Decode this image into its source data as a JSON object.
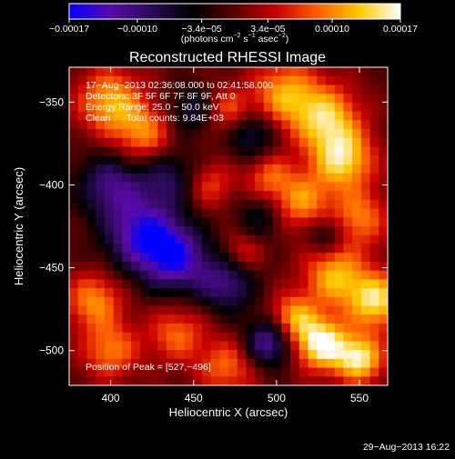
{
  "chart_data": {
    "type": "heatmap",
    "title": "Reconstructed RHESSI Image",
    "xlabel": "Heliocentric X (arcsec)",
    "ylabel": "Heliocentric Y (arcsec)",
    "xlim": [
      375,
      567
    ],
    "ylim": [
      -521,
      -329
    ],
    "xticks": [
      400,
      450,
      500,
      550
    ],
    "xtick_labels": [
      "400",
      "450",
      "500",
      "550"
    ],
    "yticks": [
      -350,
      -400,
      -450,
      -500
    ],
    "ytick_labels": [
      "−350",
      "−400",
      "−450",
      "−500"
    ],
    "colorbar": {
      "range": [
        -0.00017,
        0.00017
      ],
      "ticks": [
        -0.00017,
        -0.0001,
        -3.4e-05,
        3.4e-05,
        0.0001,
        0.00017
      ],
      "tick_labels": [
        "−0.00017",
        "−0.00010",
        "−3.4e−05",
        "3.4e−05",
        "0.00010",
        "0.00017"
      ],
      "unit_main": "(photons cm",
      "unit_sup1": "−2",
      "unit_mid": " s",
      "unit_sup2": "−1",
      "unit_mid2": " asec",
      "unit_sup3": "−2",
      "unit_end": ")",
      "colors": [
        "#0000ff",
        "#5a0aa8",
        "#2a0a55",
        "#000000",
        "#5a0000",
        "#c80000",
        "#ff6000",
        "#ffc800",
        "#ffffff"
      ]
    },
    "annotations": [
      "17−Aug−2013 02:36:08.000 to 02:41:58.000",
      "Detectors: 3F 5F 6F 7F 8F 9F, Att 0",
      "Energy Range: 25.0 − 50.0 keV",
      "Clean      Total counts: 9.84E+03"
    ],
    "peak_label": "Position of Peak = [527,−496]",
    "peak": [
      527,
      -496
    ],
    "grid": false,
    "blobs": [
      {
        "x": 400,
        "y": -350,
        "v": 0.7,
        "s": 14
      },
      {
        "x": 420,
        "y": -370,
        "v": 0.55,
        "s": 12
      },
      {
        "x": 470,
        "y": -355,
        "v": 0.45,
        "s": 10
      },
      {
        "x": 505,
        "y": -345,
        "v": 0.65,
        "s": 14
      },
      {
        "x": 530,
        "y": -360,
        "v": 0.75,
        "s": 14
      },
      {
        "x": 540,
        "y": -385,
        "v": 0.8,
        "s": 13
      },
      {
        "x": 515,
        "y": -410,
        "v": 0.6,
        "s": 12
      },
      {
        "x": 550,
        "y": -420,
        "v": 0.55,
        "s": 12
      },
      {
        "x": 495,
        "y": -395,
        "v": 0.45,
        "s": 10
      },
      {
        "x": 460,
        "y": -400,
        "v": 0.4,
        "s": 10
      },
      {
        "x": 390,
        "y": -470,
        "v": 0.6,
        "s": 12
      },
      {
        "x": 400,
        "y": -500,
        "v": 0.55,
        "s": 12
      },
      {
        "x": 440,
        "y": -490,
        "v": 0.5,
        "s": 12
      },
      {
        "x": 470,
        "y": -510,
        "v": 0.5,
        "s": 12
      },
      {
        "x": 535,
        "y": -455,
        "v": 0.7,
        "s": 13
      },
      {
        "x": 560,
        "y": -470,
        "v": 0.85,
        "s": 12
      },
      {
        "x": 527,
        "y": -496,
        "v": 1.0,
        "s": 11
      },
      {
        "x": 550,
        "y": -505,
        "v": 0.9,
        "s": 10
      },
      {
        "x": 510,
        "y": -480,
        "v": 0.65,
        "s": 10
      },
      {
        "x": 480,
        "y": -440,
        "v": 0.35,
        "s": 9
      },
      {
        "x": 420,
        "y": -430,
        "v": -0.85,
        "s": 16
      },
      {
        "x": 440,
        "y": -445,
        "v": -0.75,
        "s": 14
      },
      {
        "x": 470,
        "y": -460,
        "v": -0.6,
        "s": 12
      },
      {
        "x": 400,
        "y": -400,
        "v": -0.6,
        "s": 14
      },
      {
        "x": 435,
        "y": -395,
        "v": -0.45,
        "s": 12
      },
      {
        "x": 495,
        "y": -495,
        "v": -0.75,
        "s": 10
      },
      {
        "x": 450,
        "y": -355,
        "v": -0.45,
        "s": 10
      },
      {
        "x": 485,
        "y": -370,
        "v": -0.5,
        "s": 10
      },
      {
        "x": 490,
        "y": -420,
        "v": -0.35,
        "s": 10
      },
      {
        "x": 530,
        "y": -430,
        "v": -0.4,
        "s": 8
      }
    ]
  },
  "footer": {
    "date": "29−Aug−2013 16:22"
  }
}
